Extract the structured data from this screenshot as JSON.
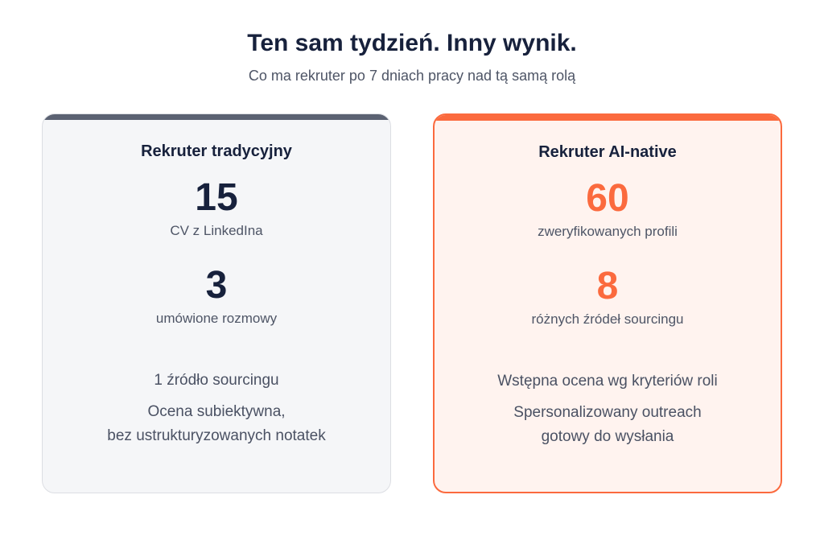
{
  "header": {
    "title": "Ten sam tydzień. Inny wynik.",
    "subtitle": "Co ma rekruter po 7 dniach pracy nad tą samą rolą"
  },
  "cards": [
    {
      "title": "Rekruter tradycyjny",
      "stat1_value": "15",
      "stat1_label": "CV z LinkedIna",
      "stat2_value": "3",
      "stat2_label": "umówione rozmowy",
      "note1": "1 źródło sourcingu",
      "note2_line1": "Ocena subiektywna,",
      "note2_line2": "bez ustrukturyzowanych notatek"
    },
    {
      "title": "Rekruter AI-native",
      "stat1_value": "60",
      "stat1_label": "zweryfikowanych profili",
      "stat2_value": "8",
      "stat2_label": "różnych źródeł sourcingu",
      "note1": "Wstępna ocena wg kryteriów roli",
      "note2_line1": "Spersonalizowany outreach",
      "note2_line2": "gotowy do wysłania"
    }
  ],
  "colors": {
    "accent": "#fb6a3e",
    "neutral_bar": "#5b6272",
    "heading": "#17213c"
  }
}
